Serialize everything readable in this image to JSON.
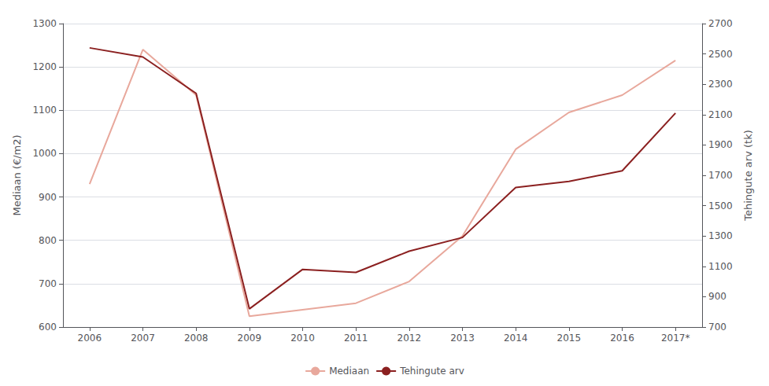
{
  "chart_data": {
    "type": "line",
    "categories": [
      "2006",
      "2007",
      "2008",
      "2009",
      "2010",
      "2011",
      "2012",
      "2013",
      "2014",
      "2015",
      "2016",
      "2017*"
    ],
    "series": [
      {
        "name": "Mediaan",
        "color": "#e8a89c",
        "values": [
          930,
          1240,
          1135,
          625,
          640,
          655,
          705,
          810,
          1010,
          1095,
          1135,
          1215
        ]
      },
      {
        "name": "Tehingute arv",
        "color": "#8b2020",
        "axis": "y2",
        "values": [
          2540,
          2480,
          2240,
          820,
          1080,
          1060,
          1200,
          1290,
          1620,
          1660,
          1730,
          2110
        ]
      }
    ],
    "ylabel": "Mediaan (€/m2)",
    "y2label": "Tehingute arv (tk)",
    "ylim": [
      600,
      1300
    ],
    "yticks": [
      600,
      700,
      800,
      900,
      1000,
      1100,
      1200,
      1300
    ],
    "y2lim": [
      700,
      2700
    ],
    "y2ticks": [
      700,
      900,
      1100,
      1300,
      1500,
      1700,
      1900,
      2100,
      2300,
      2500,
      2700
    ],
    "grid": true,
    "legend": "bottom"
  }
}
